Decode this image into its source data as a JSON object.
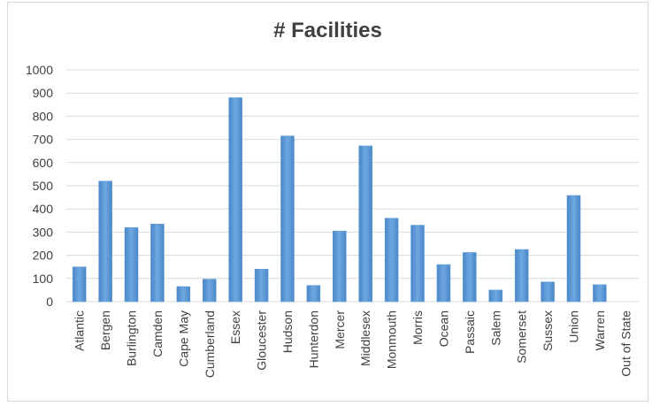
{
  "chart_data": {
    "type": "bar",
    "title": "# Facilities",
    "xlabel": "",
    "ylabel": "",
    "ylim": [
      0,
      1000
    ],
    "yticks": [
      0,
      100,
      200,
      300,
      400,
      500,
      600,
      700,
      800,
      900,
      1000
    ],
    "grid": true,
    "legend": "none",
    "bar_color": "#5b9bd5",
    "categories": [
      "Atlantic",
      "Bergen",
      "Burlington",
      "Camden",
      "Cape May",
      "Cumberland",
      "Essex",
      "Gloucester",
      "Hudson",
      "Hunterdon",
      "Mercer",
      "Middlesex",
      "Monmouth",
      "Morris",
      "Ocean",
      "Passaic",
      "Salem",
      "Somerset",
      "Sussex",
      "Union",
      "Warren",
      "Out of State"
    ],
    "values": [
      150,
      520,
      320,
      335,
      65,
      97,
      880,
      140,
      715,
      70,
      305,
      672,
      360,
      330,
      160,
      212,
      50,
      225,
      85,
      458,
      73,
      0
    ]
  }
}
